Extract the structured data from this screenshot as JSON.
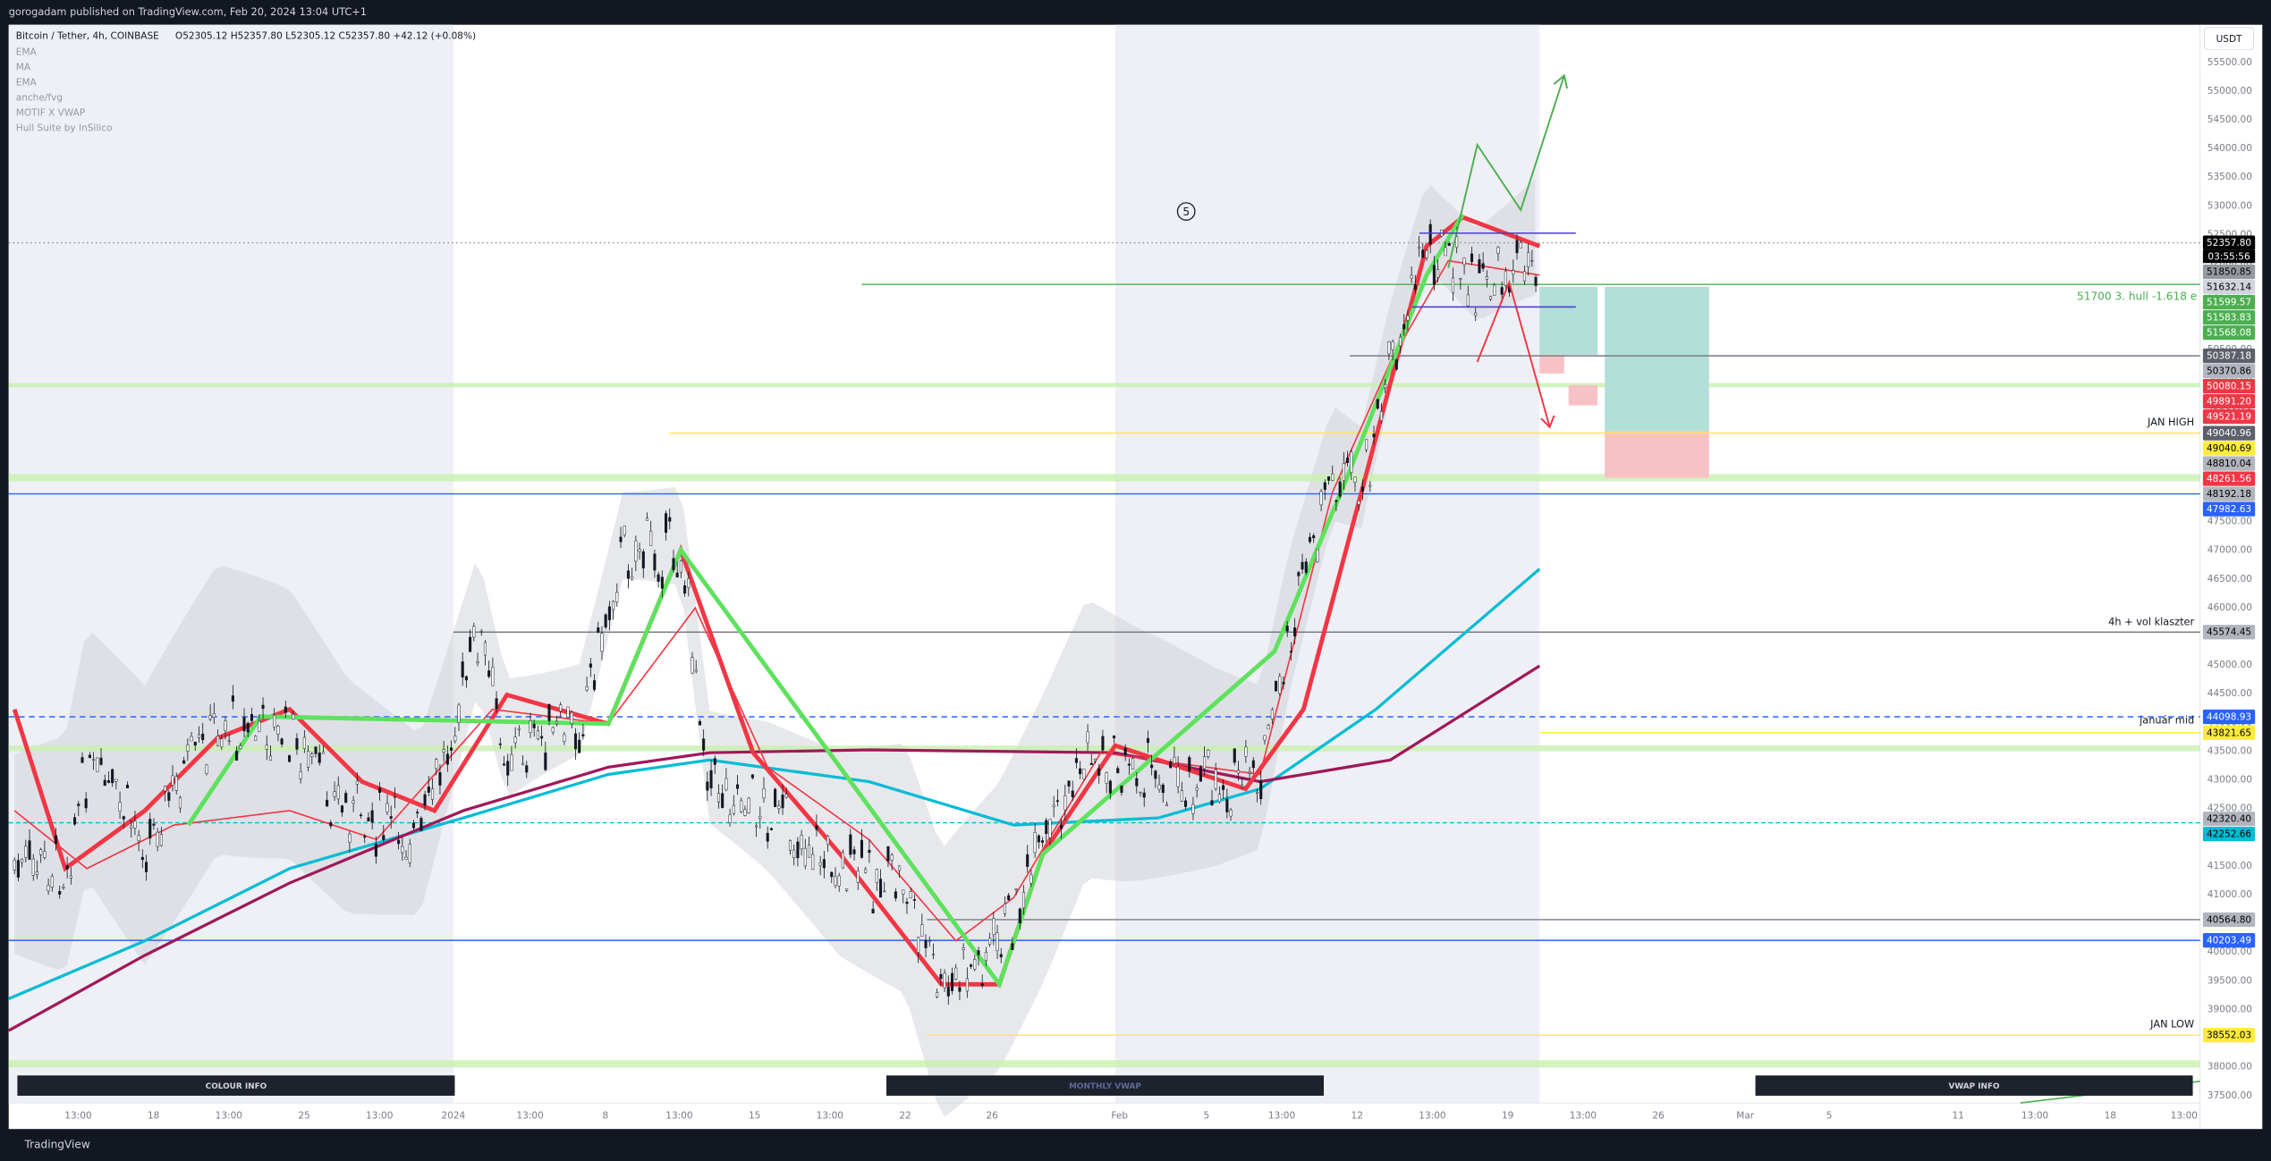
{
  "header": {
    "publisher": "gorogadam published on TradingView.com, Feb 20, 2024 13:04 UTC+1"
  },
  "legend": {
    "symbol": "Bitcoin / Tether, 4h, COINBASE",
    "ohlc": "O52305.12  H52357.80  L52305.12  C52357.80  +42.12 (+0.08%)",
    "indicators": [
      "EMA",
      "MA",
      "EMA",
      "anche/fvg",
      "MOTIF X VWAP",
      "Hull Suite by InSilico"
    ]
  },
  "price_axis": {
    "currency": "USDT",
    "ticks": [
      "55500.00",
      "55000.00",
      "54500.00",
      "54000.00",
      "53500.00",
      "53000.00",
      "52500.00",
      "52000.00",
      "51500.00",
      "51000.00",
      "50500.00",
      "50000.00",
      "49500.00",
      "49000.00",
      "48500.00",
      "48000.00",
      "47500.00",
      "47000.00",
      "46500.00",
      "46000.00",
      "45500.00",
      "45000.00",
      "44500.00",
      "44000.00",
      "43500.00",
      "43000.00",
      "42500.00",
      "42000.00",
      "41500.00",
      "41000.00",
      "40500.00",
      "40000.00",
      "39500.00",
      "39000.00",
      "38500.00",
      "38000.00",
      "37500.00"
    ]
  },
  "countdown": "03:55:56",
  "price_labels": [
    {
      "text": "52357.80",
      "color": "#000000",
      "text_color": "#ffffff"
    },
    {
      "text": "51850.85",
      "color": "#9598a1",
      "text_color": "#000000"
    },
    {
      "text": "51632.14",
      "color": "#d1d4dc",
      "text_color": "#000000"
    },
    {
      "text": "51599.57",
      "color": "#4caf50",
      "text_color": "#ffffff"
    },
    {
      "text": "51583.83",
      "color": "#4caf50",
      "text_color": "#ffffff"
    },
    {
      "text": "51568.08",
      "color": "#4caf50",
      "text_color": "#ffffff"
    },
    {
      "text": "50387.18",
      "color": "#5d606b",
      "text_color": "#ffffff"
    },
    {
      "text": "50370.86",
      "color": "#b2b5be",
      "text_color": "#000000"
    },
    {
      "text": "50080.15",
      "color": "#f23645",
      "text_color": "#ffffff"
    },
    {
      "text": "49891.20",
      "color": "#f23645",
      "text_color": "#ffffff"
    },
    {
      "text": "49521.19",
      "color": "#f23645",
      "text_color": "#ffffff"
    },
    {
      "text": "49040.96",
      "color": "#5d606b",
      "text_color": "#ffffff"
    },
    {
      "text": "49040.69",
      "color": "#ffeb3b",
      "text_color": "#000000"
    },
    {
      "text": "48810.04",
      "color": "#b2b5be",
      "text_color": "#000000"
    },
    {
      "text": "48261.56",
      "color": "#f23645",
      "text_color": "#ffffff"
    },
    {
      "text": "48192.18",
      "color": "#b2b5be",
      "text_color": "#000000"
    },
    {
      "text": "47982.63",
      "color": "#2962ff",
      "text_color": "#ffffff"
    },
    {
      "text": "45574.45",
      "color": "#b2b5be",
      "text_color": "#000000"
    },
    {
      "text": "44098.93",
      "color": "#2962ff",
      "text_color": "#ffffff"
    },
    {
      "text": "43821.65",
      "color": "#ffeb3b",
      "text_color": "#000000"
    },
    {
      "text": "42320.40",
      "color": "#b2b5be",
      "text_color": "#000000"
    },
    {
      "text": "42252.66",
      "color": "#00bcd4",
      "text_color": "#000000"
    },
    {
      "text": "40564.80",
      "color": "#b2b5be",
      "text_color": "#000000"
    },
    {
      "text": "40203.49",
      "color": "#2962ff",
      "text_color": "#ffffff"
    },
    {
      "text": "38552.03",
      "color": "#ffeb3b",
      "text_color": "#000000"
    }
  ],
  "annotations": {
    "hull": "51700 3. hull -1.618 e",
    "jan_high": "JAN HIGH",
    "vol": "4h + vol klaszter",
    "jan_mid": "január mid",
    "jan_low": "JAN LOW",
    "wave": "5"
  },
  "time_axis": [
    "13:00",
    "18",
    "13:00",
    "25",
    "13:00",
    "2024",
    "13:00",
    "8",
    "13:00",
    "15",
    "13:00",
    "22",
    "26",
    "Feb",
    "5",
    "13:00",
    "12",
    "13:00",
    "19",
    "13:00",
    "26",
    "Mar",
    "5",
    "11",
    "13:00",
    "18",
    "13:00"
  ],
  "buttons": [
    "COLOUR INFO",
    "MONTHLY VWAP",
    "VWAP INFO"
  ],
  "footer": "TradingView"
}
